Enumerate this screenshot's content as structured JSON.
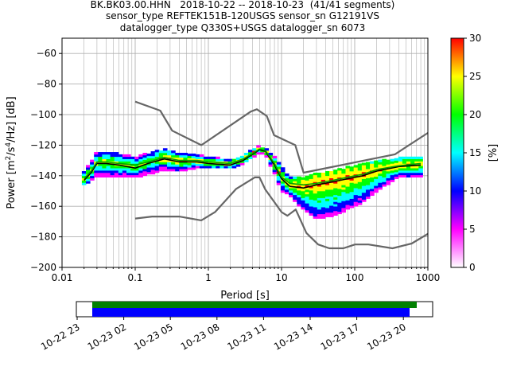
{
  "title_lines": [
    "BK.BK03.00.HHN   2018-10-22 -- 2018-10-23  (41/41 segments)",
    "sensor_type REFTEK151B-120USGS sensor_sn G12191VS",
    "datalogger_type Q330S+USGS datalogger_sn 6073"
  ],
  "chart_data": {
    "type": "heatmap",
    "title": "BK.BK03.00.HHN   2018-10-22 -- 2018-10-23  (41/41 segments)",
    "xlabel": "Period [s]",
    "ylabel": "Power [m²/s⁴/Hz] [dB]",
    "x_scale": "log",
    "xlim": [
      0.01,
      1000
    ],
    "ylim": [
      -200,
      -50
    ],
    "x_ticks": [
      0.01,
      0.1,
      1,
      10,
      100,
      1000
    ],
    "x_tick_labels": [
      "0.01",
      "0.1",
      "1",
      "10",
      "100",
      "1000"
    ],
    "y_ticks": [
      -200,
      -180,
      -160,
      -140,
      -120,
      -100,
      -80,
      -60
    ],
    "y_tick_labels": [
      "−200",
      "−180",
      "−160",
      "−140",
      "−120",
      "−100",
      "−80",
      "−60"
    ],
    "grid": true,
    "colorbar": {
      "label": "[%]",
      "range": [
        0,
        30
      ],
      "ticks": [
        0,
        5,
        10,
        15,
        20,
        25,
        30
      ],
      "tick_labels": [
        "0",
        "5",
        "10",
        "15",
        "20",
        "25",
        "30"
      ],
      "colors": [
        "#ffffff",
        "#ff00ff",
        "#0000ff",
        "#00ffff",
        "#00ff00",
        "#ffff00",
        "#ff0000"
      ]
    },
    "series": [
      {
        "role": "high noise model",
        "color": "#666666",
        "x": [
          0.1,
          0.22,
          0.32,
          0.8,
          3.8,
          4.6,
          6.3,
          7.9,
          15.4,
          20,
          354.8,
          1000
        ],
        "y": [
          -91.5,
          -97.4,
          -110.5,
          -120,
          -98,
          -96.5,
          -101,
          -113.5,
          -120,
          -138,
          -126,
          -112
        ]
      },
      {
        "role": "low noise model",
        "color": "#666666",
        "x": [
          0.1,
          0.17,
          0.4,
          0.8,
          1.24,
          2.4,
          4.3,
          5,
          6,
          10,
          12,
          15.6,
          21.9,
          31.6,
          45,
          70,
          101,
          154,
          328,
          600,
          1000
        ],
        "y": [
          -168,
          -166.7,
          -166.7,
          -169.2,
          -163.7,
          -148.6,
          -141.1,
          -141.1,
          -149,
          -163.8,
          -166.2,
          -162.1,
          -177.5,
          -185,
          -187.5,
          -187.5,
          -185,
          -185,
          -187.5,
          -184.4,
          -178
        ]
      },
      {
        "role": "mode",
        "color": "#000000",
        "x": [
          0.02,
          0.025,
          0.03,
          0.04,
          0.06,
          0.1,
          0.15,
          0.25,
          0.4,
          0.7,
          1,
          2,
          3,
          4,
          5,
          6,
          8,
          10,
          13,
          20,
          30,
          50,
          80,
          130,
          200,
          400,
          800
        ],
        "y": [
          -143,
          -138,
          -132,
          -132,
          -133,
          -135,
          -132,
          -129,
          -131,
          -131,
          -132,
          -133,
          -130,
          -126,
          -123,
          -124,
          -133,
          -142,
          -147,
          -148,
          -146,
          -144,
          -142,
          -140,
          -137,
          -134,
          -133
        ]
      },
      {
        "role": "mean",
        "color": "#00a000",
        "x": [
          0.02,
          0.025,
          0.03,
          0.04,
          0.06,
          0.1,
          0.15,
          0.25,
          0.4,
          0.7,
          1,
          2,
          3,
          4,
          5,
          6,
          8,
          10,
          13,
          20,
          30,
          50,
          80,
          130,
          200,
          400,
          800
        ],
        "y": [
          -142,
          -137,
          -131,
          -131,
          -132,
          -133,
          -131,
          -128,
          -130,
          -130,
          -131,
          -132,
          -129,
          -125.5,
          -122.5,
          -123.5,
          -132,
          -141,
          -145,
          -146,
          -145,
          -143,
          -141,
          -139,
          -136,
          -133.5,
          -132
        ]
      }
    ],
    "density_band": {
      "x": [
        0.02,
        0.025,
        0.03,
        0.04,
        0.06,
        0.1,
        0.15,
        0.25,
        0.4,
        0.7,
        1,
        2,
        3,
        4,
        5,
        6,
        8,
        10,
        13,
        20,
        30,
        50,
        80,
        130,
        200,
        400,
        800
      ],
      "upper": [
        -137,
        -131,
        -125,
        -125,
        -126,
        -128,
        -126,
        -123,
        -126,
        -127,
        -128,
        -130,
        -127,
        -123,
        -121,
        -122,
        -128,
        -135,
        -141,
        -142,
        -139,
        -137,
        -135,
        -133,
        -131,
        -129,
        -128
      ],
      "lower": [
        -146,
        -143,
        -140,
        -141,
        -141,
        -141,
        -139,
        -136,
        -137,
        -135,
        -135,
        -135,
        -132,
        -128,
        -125,
        -126,
        -138,
        -150,
        -153,
        -162,
        -168,
        -166,
        -162,
        -157,
        -150,
        -141,
        -141
      ]
    }
  },
  "timeline": {
    "tick_labels": [
      "10-22 23",
      "10-23 02",
      "10-23 05",
      "10-23 08",
      "10-23 11",
      "10-23 14",
      "10-23 17",
      "10-23 20"
    ],
    "bars": [
      {
        "role": "data",
        "color": "#008000"
      },
      {
        "role": "psd segments",
        "color": "#0000ff"
      }
    ]
  }
}
